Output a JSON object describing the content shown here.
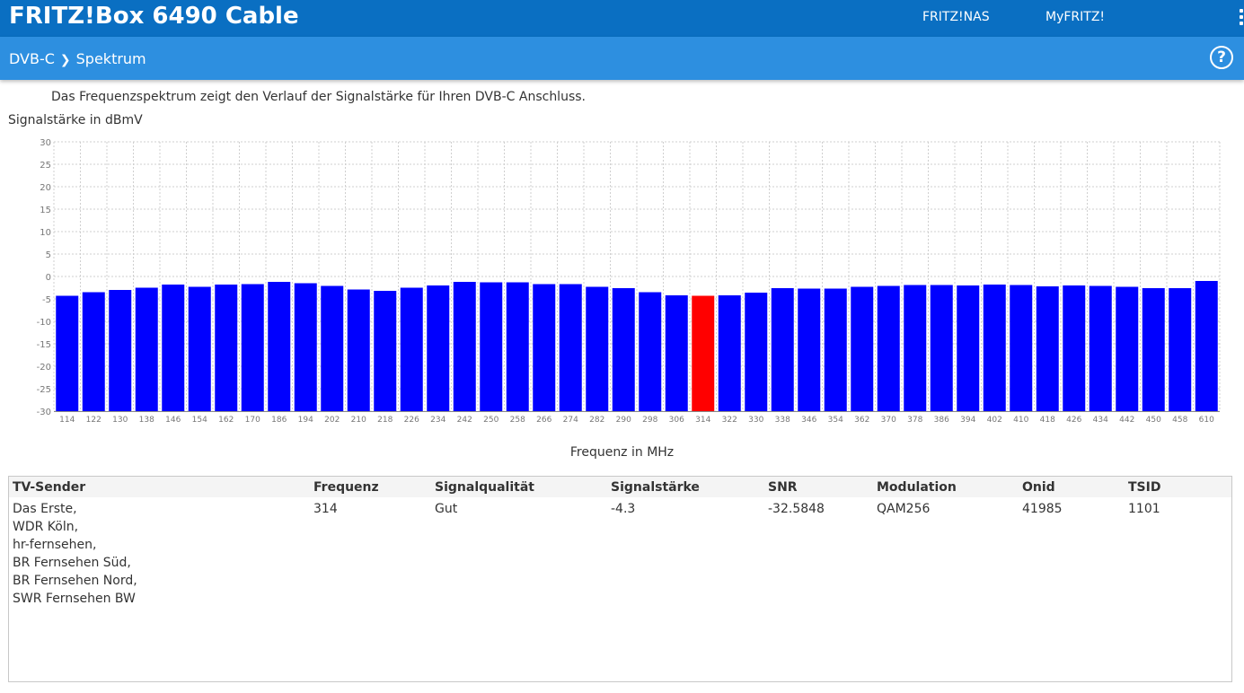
{
  "header": {
    "brand": "FRITZ!Box 6490 Cable",
    "links": [
      "FRITZ!NAS",
      "MyFRITZ!"
    ]
  },
  "breadcrumb": {
    "section": "DVB-C",
    "page": "Spektrum"
  },
  "description": "Das Frequenzspektrum zeigt den Verlauf der Signalstärke für Ihren DVB-C Anschluss.",
  "chart_data": {
    "type": "bar",
    "ylabel": "Signalstärke in dBmV",
    "xlabel": "Frequenz in MHz",
    "ylim": [
      -30,
      30
    ],
    "yticks": [
      30,
      25,
      20,
      15,
      10,
      5,
      0,
      -5,
      -10,
      -15,
      -20,
      -25,
      -30
    ],
    "grid": true,
    "highlight_color": "#ff0000",
    "bar_color": "#0000ff",
    "categories": [
      "114",
      "122",
      "130",
      "138",
      "146",
      "154",
      "162",
      "170",
      "186",
      "194",
      "202",
      "210",
      "218",
      "226",
      "234",
      "242",
      "250",
      "258",
      "266",
      "274",
      "282",
      "290",
      "298",
      "306",
      "314",
      "322",
      "330",
      "338",
      "346",
      "354",
      "362",
      "370",
      "378",
      "386",
      "394",
      "402",
      "410",
      "418",
      "426",
      "434",
      "442",
      "450",
      "458",
      "610"
    ],
    "values": [
      -4.3,
      -3.5,
      -3.0,
      -2.5,
      -1.8,
      -2.3,
      -1.8,
      -1.7,
      -1.2,
      -1.5,
      -2.1,
      -2.9,
      -3.2,
      -2.5,
      -2.0,
      -1.2,
      -1.3,
      -1.3,
      -1.7,
      -1.7,
      -2.3,
      -2.6,
      -3.5,
      -4.2,
      -4.3,
      -4.2,
      -3.6,
      -2.6,
      -2.7,
      -2.7,
      -2.3,
      -2.1,
      -1.9,
      -1.9,
      -2.0,
      -1.8,
      -1.9,
      -2.2,
      -2.0,
      -2.1,
      -2.3,
      -2.6,
      -2.6,
      -1.0
    ],
    "highlight_index": 24
  },
  "table": {
    "headers": [
      "TV-Sender",
      "Frequenz",
      "Signalqualität",
      "Signalstärke",
      "SNR",
      "Modulation",
      "Onid",
      "TSID"
    ],
    "rows": [
      {
        "sender": [
          "Das Erste,",
          "WDR Köln,",
          "hr-fernsehen,",
          "BR Fernsehen Süd,",
          "BR Fernsehen Nord,",
          "SWR Fernsehen BW"
        ],
        "frequenz": "314",
        "signalqualitaet": "Gut",
        "signalstaerke": "-4.3",
        "snr": "-32.5848",
        "modulation": "QAM256",
        "onid": "41985",
        "tsid": "1101"
      }
    ]
  }
}
